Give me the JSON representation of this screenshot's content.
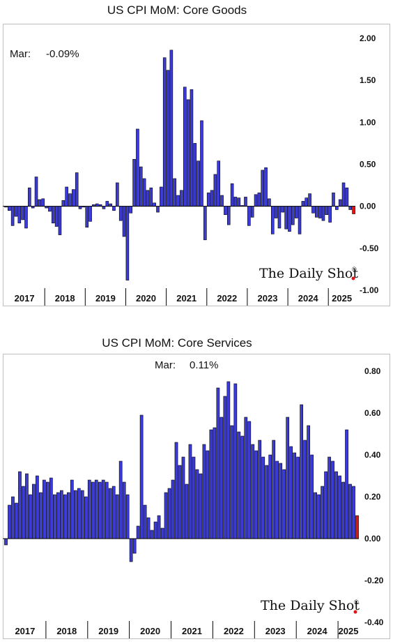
{
  "chart_data": [
    {
      "type": "bar",
      "title": "US CPI MoM: Core Goods",
      "annotation": {
        "month": "Mar:",
        "value": "-0.09%"
      },
      "brand": "The Daily Shot",
      "brand_mark": "®",
      "ylim": [
        -1.0,
        2.0
      ],
      "yticks": [
        "2.00",
        "1.50",
        "1.00",
        "0.50",
        "0.00",
        "-0.50",
        "-1.00"
      ],
      "ytick_values": [
        2.0,
        1.5,
        1.0,
        0.5,
        0.0,
        -0.5,
        -1.0
      ],
      "years": [
        "2017",
        "2018",
        "2019",
        "2020",
        "2021",
        "2022",
        "2023",
        "2024",
        "2025"
      ],
      "colors": {
        "bar": "#3b3bd9",
        "latest": "#e01414",
        "edge": "#000000"
      },
      "values": [
        -0.01,
        -0.05,
        -0.23,
        -0.12,
        -0.2,
        -0.16,
        -0.26,
        0.22,
        -0.02,
        0.35,
        0.08,
        0.09,
        -0.02,
        -0.06,
        -0.2,
        -0.24,
        -0.34,
        0.07,
        0.23,
        0.15,
        0.2,
        0.4,
        -0.03,
        -0.01,
        -0.25,
        -0.18,
        0.02,
        0.03,
        0.02,
        -0.03,
        0.06,
        0.03,
        -0.05,
        0.28,
        -0.17,
        -0.36,
        -0.88,
        -0.08,
        0.56,
        0.92,
        0.47,
        0.33,
        0.19,
        0.22,
        0.04,
        -0.07,
        0.23,
        1.77,
        1.62,
        1.86,
        0.33,
        0.13,
        0.19,
        1.42,
        1.27,
        1.39,
        0.75,
        0.54,
        1.02,
        -0.4,
        0.16,
        0.19,
        0.38,
        0.54,
        0.13,
        -0.1,
        -0.22,
        0.27,
        0.11,
        0.1,
        0.01,
        0.11,
        -0.23,
        -0.13,
        0.14,
        0.16,
        0.43,
        0.46,
        0.09,
        -0.33,
        -0.14,
        -0.26,
        -0.07,
        -0.27,
        -0.3,
        -0.22,
        -0.14,
        -0.33,
        0.06,
        0.1,
        0.15,
        -0.08,
        -0.13,
        -0.14,
        -0.17,
        -0.1,
        -0.19,
        0.16,
        -0.04,
        0.08,
        0.28,
        0.22,
        -0.04,
        -0.09
      ]
    },
    {
      "type": "bar",
      "title": "US CPI MoM: Core Services",
      "annotation": {
        "month": "Mar:",
        "value": "0.11%"
      },
      "brand": "The Daily Shot",
      "brand_mark": "®",
      "ylim": [
        -0.4,
        0.8
      ],
      "yticks": [
        "0.80",
        "0.60",
        "0.40",
        "0.20",
        "0.00",
        "-0.20",
        "-0.40"
      ],
      "ytick_values": [
        0.8,
        0.6,
        0.4,
        0.2,
        0.0,
        -0.2,
        -0.4
      ],
      "years": [
        "2017",
        "2018",
        "2019",
        "2020",
        "2021",
        "2022",
        "2023",
        "2024",
        "2025"
      ],
      "colors": {
        "bar": "#3b3bd9",
        "latest": "#e01414",
        "edge": "#000000"
      },
      "values": [
        -0.03,
        0.16,
        0.2,
        0.17,
        0.32,
        0.25,
        0.31,
        0.21,
        0.26,
        0.3,
        0.22,
        0.28,
        0.27,
        0.29,
        0.21,
        0.22,
        0.23,
        0.21,
        0.22,
        0.28,
        0.23,
        0.24,
        0.23,
        0.2,
        0.28,
        0.27,
        0.28,
        0.27,
        0.28,
        0.27,
        0.24,
        0.25,
        0.21,
        0.37,
        0.27,
        0.21,
        -0.11,
        -0.07,
        0.06,
        0.59,
        0.16,
        0.1,
        0.04,
        0.08,
        0.11,
        0.05,
        0.22,
        0.24,
        0.28,
        0.46,
        0.35,
        0.39,
        0.26,
        0.45,
        0.39,
        0.33,
        0.31,
        0.45,
        0.42,
        0.52,
        0.53,
        0.72,
        0.58,
        0.68,
        0.75,
        0.54,
        0.74,
        0.51,
        0.49,
        0.58,
        0.56,
        0.45,
        0.42,
        0.47,
        0.39,
        0.35,
        0.4,
        0.47,
        0.37,
        0.36,
        0.33,
        0.58,
        0.44,
        0.41,
        0.39,
        0.64,
        0.47,
        0.54,
        0.4,
        0.22,
        0.21,
        0.25,
        0.32,
        0.39,
        0.37,
        0.32,
        0.3,
        0.27,
        0.52,
        0.26,
        0.25,
        0.11
      ]
    }
  ]
}
